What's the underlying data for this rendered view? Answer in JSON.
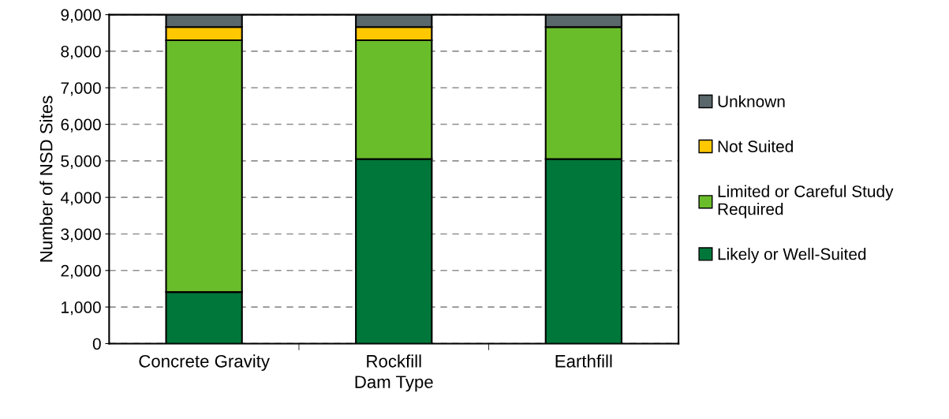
{
  "chart_data": {
    "type": "bar",
    "stacked": true,
    "xlabel": "Dam Type",
    "ylabel": "Number of NSD Sites",
    "categories": [
      "Concrete Gravity",
      "Rockfill",
      "Earthfill"
    ],
    "series": [
      {
        "name": "Likely or Well-Suited",
        "color": "#00773a",
        "values": [
          1410,
          5050,
          5050
        ]
      },
      {
        "name": "Limited or Careful Study Required",
        "color": "#6abd2a",
        "values": [
          6890,
          3250,
          3610
        ]
      },
      {
        "name": "Not Suited",
        "color": "#ffc800",
        "values": [
          360,
          360,
          0
        ]
      },
      {
        "name": "Unknown",
        "color": "#5a676b",
        "values": [
          340,
          340,
          340
        ]
      }
    ],
    "ylim": [
      0,
      9000
    ],
    "yticks": [
      {
        "value": 0,
        "label": "0"
      },
      {
        "value": 1000,
        "label": "1,000"
      },
      {
        "value": 2000,
        "label": "2,000"
      },
      {
        "value": 3000,
        "label": "3,000"
      },
      {
        "value": 4000,
        "label": "4,000"
      },
      {
        "value": 5000,
        "label": "5,000"
      },
      {
        "value": 6000,
        "label": "6,000"
      },
      {
        "value": 7000,
        "label": "7,000"
      },
      {
        "value": 8000,
        "label": "8,000"
      },
      {
        "value": 9000,
        "label": "9,000"
      }
    ],
    "grid": "y",
    "legend": "right"
  }
}
